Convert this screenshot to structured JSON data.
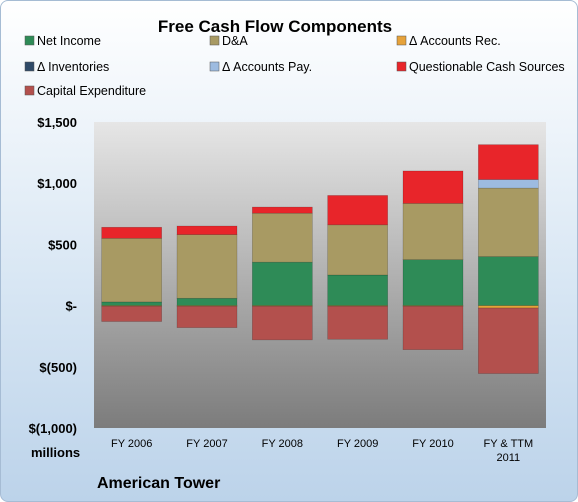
{
  "chart_data": {
    "type": "bar",
    "stacked": true,
    "title": "Free Cash Flow Components",
    "units_label": "millions",
    "footer": "American Tower",
    "categories": [
      "FY 2006",
      "FY 2007",
      "FY 2008",
      "FY 2009",
      "FY 2010",
      "FY & TTM\n2011"
    ],
    "ylim": [
      -1000,
      1500
    ],
    "yticks": [
      -1000,
      -500,
      0,
      500,
      1000,
      1500
    ],
    "ytick_labels": [
      "$(1,000)",
      "$(500)",
      "$-",
      "$500",
      "$1,000",
      "$1,500"
    ],
    "grid": false,
    "legend_position": "top",
    "series": [
      {
        "name": "Net Income",
        "color": "#2e8b57",
        "values": [
          30,
          60,
          355,
          250,
          375,
          400
        ]
      },
      {
        "name": "D&A",
        "color": "#a89a63",
        "values": [
          520,
          520,
          400,
          410,
          460,
          560
        ]
      },
      {
        "name": "Δ Accounts Rec.",
        "color": "#e6a23a",
        "values": [
          -5,
          -5,
          -5,
          -5,
          -5,
          -20
        ]
      },
      {
        "name": "Δ Inventories",
        "color": "#2f4a68",
        "values": [
          0,
          0,
          0,
          0,
          0,
          0
        ]
      },
      {
        "name": "Δ Accounts Pay.",
        "color": "#9dbbe0",
        "values": [
          0,
          0,
          0,
          0,
          0,
          70
        ]
      },
      {
        "name": "Questionable Cash Sources",
        "color": "#e8252a",
        "values": [
          90,
          70,
          50,
          240,
          265,
          285
        ]
      },
      {
        "name": "Capital Expenditure",
        "color": "#b3504d",
        "values": [
          -125,
          -175,
          -275,
          -270,
          -355,
          -535
        ]
      }
    ]
  }
}
